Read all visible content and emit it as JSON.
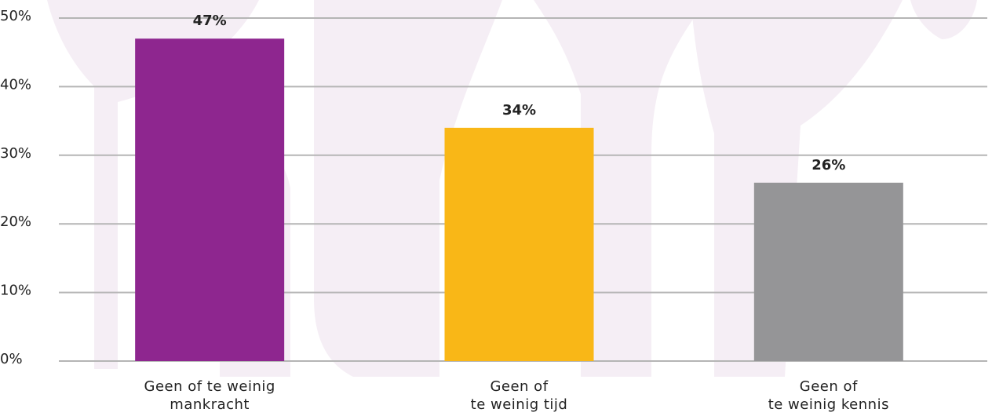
{
  "chart_data": {
    "type": "bar",
    "categories": [
      "Geen of te weinig\nmankracht",
      "Geen of\nte weinig tijd",
      "Geen of\nte weinig kennis"
    ],
    "values": [
      47,
      34,
      26
    ],
    "value_labels": [
      "47%",
      "34%",
      "26%"
    ],
    "colors": [
      "#8e268f",
      "#f9b717",
      "#959597"
    ],
    "ylim": [
      0,
      50
    ],
    "yticks": [
      {
        "value": 0,
        "label": "0%"
      },
      {
        "value": 10,
        "label": "10%"
      },
      {
        "value": 20,
        "label": "20%"
      },
      {
        "value": 30,
        "label": "30%"
      },
      {
        "value": 40,
        "label": "40%"
      },
      {
        "value": 50,
        "label": "50%"
      }
    ],
    "grid": true
  }
}
